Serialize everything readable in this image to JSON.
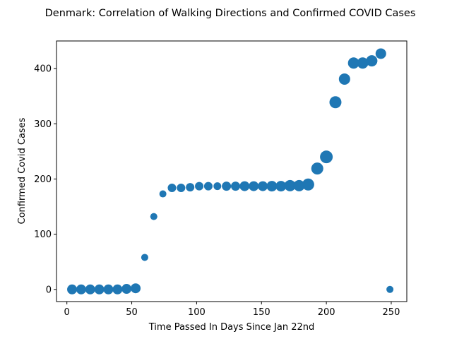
{
  "chart_data": {
    "type": "scatter",
    "title": "Denmark: Correlation of Walking Directions and Confirmed COVID Cases",
    "xlabel": "Time Passed In Days Since Jan 22nd",
    "ylabel": "Confirmed Covid Cases",
    "xlim": [
      -8,
      262
    ],
    "ylim": [
      -22,
      450
    ],
    "xticks": [
      0,
      50,
      100,
      150,
      200,
      250
    ],
    "yticks": [
      0,
      100,
      200,
      300,
      400
    ],
    "grid": false,
    "marker_color": "#1f77b4",
    "points": [
      {
        "x": 4,
        "y": 0,
        "size": 7
      },
      {
        "x": 11,
        "y": 0,
        "size": 7
      },
      {
        "x": 18,
        "y": 0,
        "size": 7
      },
      {
        "x": 25,
        "y": 0,
        "size": 7
      },
      {
        "x": 32,
        "y": 0,
        "size": 7
      },
      {
        "x": 39,
        "y": 0,
        "size": 7
      },
      {
        "x": 46,
        "y": 1,
        "size": 7
      },
      {
        "x": 53,
        "y": 2,
        "size": 7
      },
      {
        "x": 60,
        "y": 58,
        "size": 5
      },
      {
        "x": 67,
        "y": 132,
        "size": 5
      },
      {
        "x": 74,
        "y": 173,
        "size": 5
      },
      {
        "x": 81,
        "y": 184,
        "size": 6
      },
      {
        "x": 88,
        "y": 184,
        "size": 6
      },
      {
        "x": 95,
        "y": 185,
        "size": 6
      },
      {
        "x": 102,
        "y": 187,
        "size": 6
      },
      {
        "x": 109,
        "y": 187,
        "size": 6
      },
      {
        "x": 116,
        "y": 187,
        "size": 5.5
      },
      {
        "x": 123,
        "y": 187,
        "size": 6.5
      },
      {
        "x": 130,
        "y": 187,
        "size": 6.5
      },
      {
        "x": 137,
        "y": 187,
        "size": 7
      },
      {
        "x": 144,
        "y": 187,
        "size": 7
      },
      {
        "x": 151,
        "y": 187,
        "size": 7
      },
      {
        "x": 158,
        "y": 187,
        "size": 7.5
      },
      {
        "x": 165,
        "y": 187,
        "size": 7.5
      },
      {
        "x": 172,
        "y": 188,
        "size": 8
      },
      {
        "x": 179,
        "y": 188,
        "size": 8
      },
      {
        "x": 186,
        "y": 190,
        "size": 8.5
      },
      {
        "x": 193,
        "y": 219,
        "size": 8.5
      },
      {
        "x": 200,
        "y": 240,
        "size": 9
      },
      {
        "x": 207,
        "y": 339,
        "size": 8.5
      },
      {
        "x": 214,
        "y": 381,
        "size": 8
      },
      {
        "x": 221,
        "y": 410,
        "size": 8
      },
      {
        "x": 228,
        "y": 410,
        "size": 8
      },
      {
        "x": 235,
        "y": 414,
        "size": 8
      },
      {
        "x": 242,
        "y": 427,
        "size": 7.5
      },
      {
        "x": 249,
        "y": 0,
        "size": 5
      }
    ]
  }
}
